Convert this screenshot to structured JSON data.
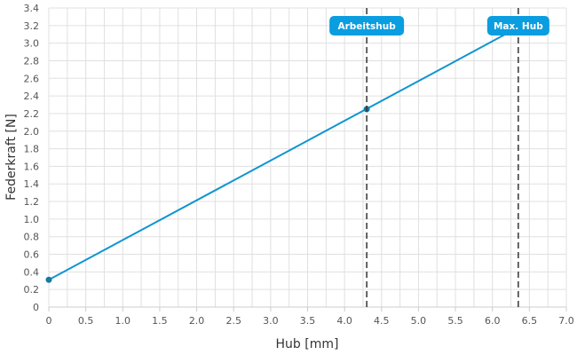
{
  "chart_data": {
    "type": "line",
    "title": "",
    "xlabel": "Hub [mm]",
    "ylabel": "Federkraft [N]",
    "xlim": [
      0,
      7
    ],
    "ylim": [
      0,
      3.4
    ],
    "x_ticks": [
      "0",
      "0.5",
      "1.0",
      "1.5",
      "2.0",
      "2.5",
      "3.0",
      "3.5",
      "4.0",
      "4.5",
      "5.0",
      "5.5",
      "6.0",
      "6.5",
      "7.0"
    ],
    "y_ticks": [
      "0",
      "0.2",
      "0.4",
      "0.6",
      "0.8",
      "1.0",
      "1.2",
      "1.4",
      "1.6",
      "1.8",
      "2.0",
      "2.2",
      "2.4",
      "2.6",
      "2.8",
      "3.0",
      "3.2",
      "3.4"
    ],
    "grid": true,
    "series": [
      {
        "color": "#0f95d2",
        "x": [
          0,
          6.35
        ],
        "y": [
          0.31,
          3.18
        ],
        "points": [
          {
            "x": 0,
            "y": 0.31
          },
          {
            "x": 4.3,
            "y": 2.25
          }
        ]
      }
    ],
    "markers": [
      {
        "label": "Arbeitshub",
        "x": 4.3
      },
      {
        "label": "Max. Hub",
        "x": 6.35
      }
    ],
    "colors": {
      "line": "#0f95d2",
      "point": "#167aa3",
      "marker_badge": "#0a9de0",
      "marker_line": "#333333",
      "grid": "#e0e0e0"
    }
  }
}
